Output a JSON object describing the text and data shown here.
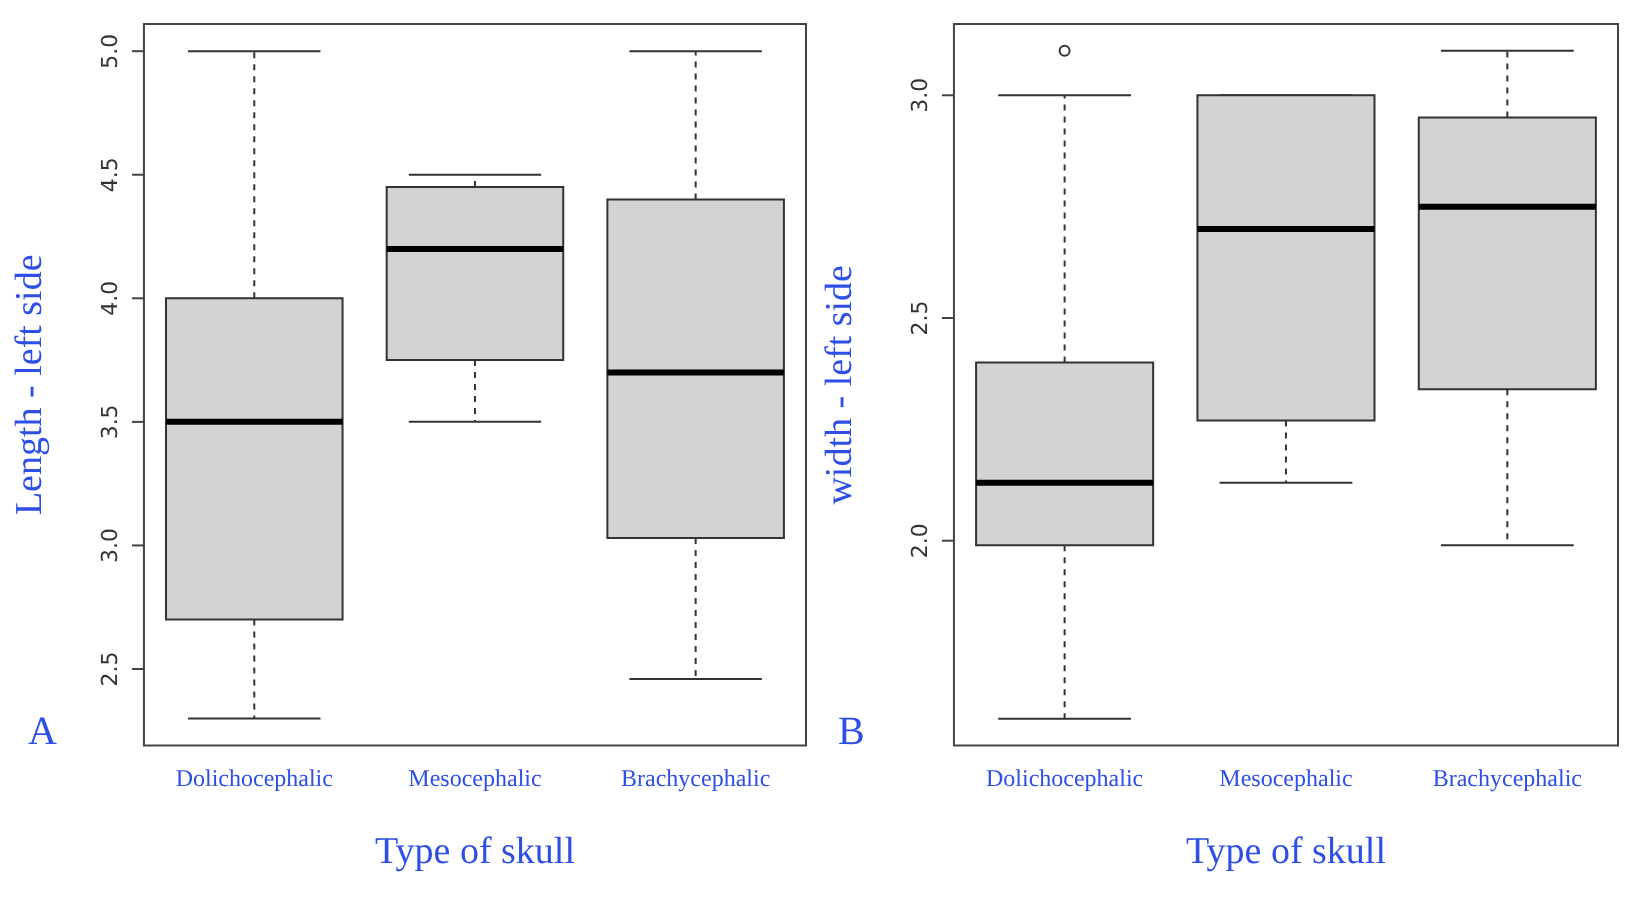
{
  "chart_data": [
    {
      "type": "box",
      "xlabel": "Type of skull",
      "ylabel": "Length - left side",
      "categories": [
        "Dolichocephalic",
        "Mesocephalic",
        "Brachycephalic"
      ],
      "series": [
        {
          "color": "#d3d3d3",
          "boxes": [
            {
              "low": 2.3,
              "q1": 2.7,
              "median": 3.5,
              "q3": 4.0,
              "high": 5.0
            },
            {
              "low": 3.5,
              "q1": 3.75,
              "median": 4.2,
              "q3": 4.45,
              "high": 4.5
            },
            {
              "low": 2.46,
              "q1": 3.03,
              "median": 3.7,
              "q3": 4.4,
              "high": 5.0
            }
          ]
        }
      ],
      "ylim": [
        2.19,
        5.11
      ],
      "yticks": [
        {
          "value": 2.5,
          "label": "2.5"
        },
        {
          "value": 3,
          "label": "3.0"
        },
        {
          "value": 3.5,
          "label": "3.5"
        },
        {
          "value": 4,
          "label": "4.0"
        },
        {
          "value": 4.5,
          "label": "4.5"
        },
        {
          "value": 5,
          "label": "5.0"
        }
      ],
      "annotations": [
        "A"
      ]
    },
    {
      "type": "box",
      "xlabel": "Type of skull",
      "ylabel": "width - left side",
      "categories": [
        "Dolichocephalic",
        "Mesocephalic",
        "Brachycephalic"
      ],
      "series": [
        {
          "color": "#d3d3d3",
          "boxes": [
            {
              "low": 1.6,
              "q1": 1.99,
              "median": 2.13,
              "q3": 2.4,
              "high": 3.0,
              "outliers": [
                3.1
              ]
            },
            {
              "low": 2.13,
              "q1": 2.27,
              "median": 2.7,
              "q3": 3.0,
              "high": 3.0
            },
            {
              "low": 1.99,
              "q1": 2.34,
              "median": 2.75,
              "q3": 2.95,
              "high": 3.1
            }
          ]
        }
      ],
      "ylim": [
        1.54,
        3.16
      ],
      "yticks": [
        {
          "value": 2,
          "label": "2.0"
        },
        {
          "value": 2.5,
          "label": "2.5"
        },
        {
          "value": 3,
          "label": "3.0"
        }
      ],
      "annotations": [
        "B"
      ]
    }
  ]
}
